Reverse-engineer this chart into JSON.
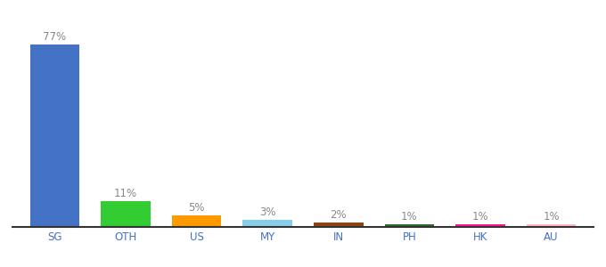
{
  "categories": [
    "SG",
    "OTH",
    "US",
    "MY",
    "IN",
    "PH",
    "HK",
    "AU"
  ],
  "values": [
    77,
    11,
    5,
    3,
    2,
    1,
    1,
    1
  ],
  "bar_colors": [
    "#4472c4",
    "#33cc33",
    "#ff9900",
    "#87ceeb",
    "#8b4513",
    "#2d6a2d",
    "#ff1493",
    "#ffb6c1"
  ],
  "labels": [
    "77%",
    "11%",
    "5%",
    "3%",
    "2%",
    "1%",
    "1%",
    "1%"
  ],
  "ylim": [
    0,
    88
  ],
  "background_color": "#ffffff",
  "label_fontsize": 8.5,
  "tick_fontsize": 8.5,
  "tick_color": "#4472c4",
  "label_color": "#888888"
}
